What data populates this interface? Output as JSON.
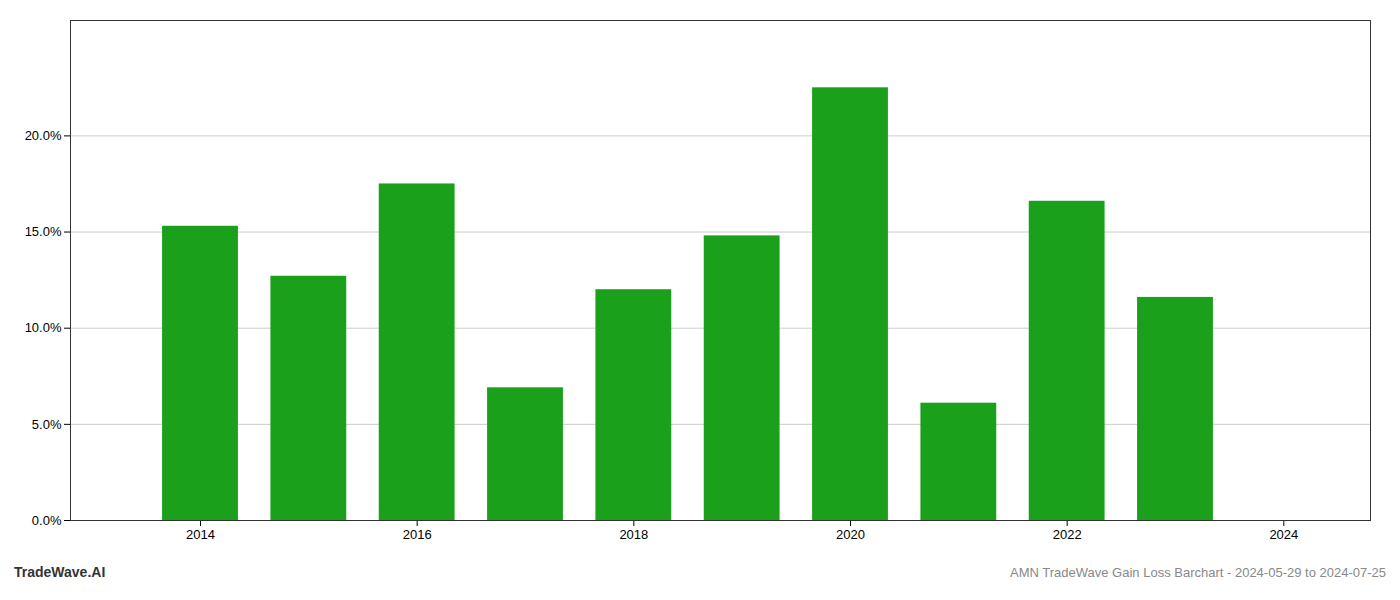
{
  "chart_data": {
    "type": "bar",
    "x": [
      2014,
      2015,
      2016,
      2017,
      2018,
      2019,
      2020,
      2021,
      2022,
      2023
    ],
    "values": [
      0.153,
      0.127,
      0.175,
      0.069,
      0.12,
      0.148,
      0.225,
      0.061,
      0.166,
      0.116
    ],
    "color": "#1aa01a",
    "xlim": [
      2012.8,
      2024.8
    ],
    "xticks": [
      2014,
      2016,
      2018,
      2020,
      2022,
      2024
    ],
    "ylim": [
      0,
      0.26
    ],
    "yticks": [
      {
        "value": 0.0,
        "label": "0.0%"
      },
      {
        "value": 0.05,
        "label": "5.0%"
      },
      {
        "value": 0.1,
        "label": "10.0%"
      },
      {
        "value": 0.15,
        "label": "15.0%"
      },
      {
        "value": 0.2,
        "label": "20.0%"
      }
    ],
    "grid": true,
    "annotations": [
      "TradeWave.AI",
      "AMN TradeWave Gain Loss Barchart - 2024-05-29 to 2024-07-25"
    ]
  }
}
